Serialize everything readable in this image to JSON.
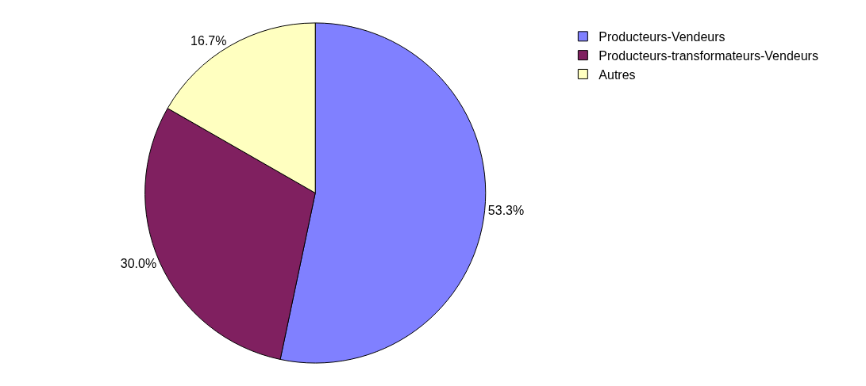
{
  "chart_data": {
    "type": "pie",
    "categories": [
      "Producteurs-Vendeurs",
      "Producteurs-transformateurs-Vendeurs",
      "Autres"
    ],
    "values": [
      53.3,
      30.0,
      16.7
    ],
    "value_labels": [
      "53.3%",
      "30.0%",
      "16.7%"
    ],
    "colors": [
      "#8080ff",
      "#802060",
      "#ffffc0"
    ],
    "legend": "top right"
  }
}
